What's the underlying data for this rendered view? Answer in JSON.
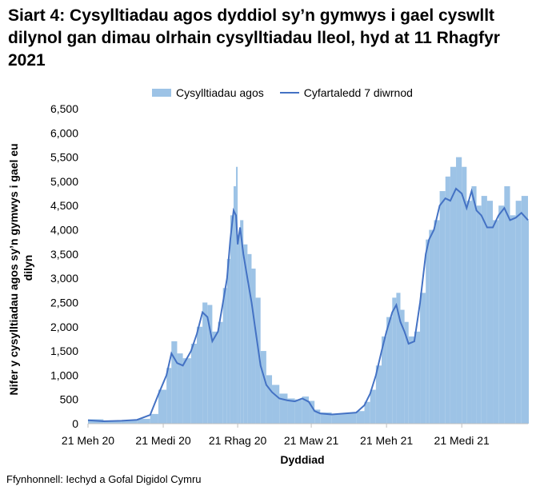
{
  "title": "Siart 4: Cysylltiadau agos dyddiol sy’n gymwys i gael cyswllt dilynol gan dimau olrhain cysylltiadau lleol, hyd at 11 Rhagfyr 2021",
  "source": "Ffynhonnell: Iechyd a Gofal Digidol Cymru",
  "chart_data": {
    "type": "bar",
    "title": "Siart 4: Cysylltiadau agos dyddiol sy’n gymwys i gael cyswllt dilynol gan dimau olrhain cysylltiadau lleol, hyd at 11 Rhagfyr 2021",
    "xlabel": "Dyddiad",
    "ylabel": "Nifer y cysylltiadau agos sy’n gymwys i gael eu dilyn",
    "ylim": [
      0,
      6500
    ],
    "yticks": [
      "0",
      "500",
      "1,000",
      "1,500",
      "2,000",
      "2,500",
      "3,000",
      "3,500",
      "4,000",
      "4,500",
      "5,000",
      "5,500",
      "6,000",
      "6,500"
    ],
    "x_tick_labels": [
      "21 Meh 20",
      "21 Medi 20",
      "21 Rhag 20",
      "21 Maw 21",
      "21 Meh 21",
      "21 Medi 21"
    ],
    "x_start": "2020-06-21",
    "x_end": "2021-12-11",
    "x_tick_dates": [
      "2020-06-21",
      "2020-09-21",
      "2020-12-21",
      "2021-03-21",
      "2021-06-21",
      "2021-09-21"
    ],
    "legend_position": "top",
    "series": [
      {
        "name": "Cysylltiadau agos",
        "kind": "bar",
        "color": "#9dc3e6",
        "dates": [
          "2020-06-21",
          "2020-07-10",
          "2020-08-01",
          "2020-08-20",
          "2020-09-05",
          "2020-09-15",
          "2020-09-25",
          "2020-10-01",
          "2020-10-08",
          "2020-10-15",
          "2020-10-25",
          "2020-11-01",
          "2020-11-08",
          "2020-11-14",
          "2020-11-20",
          "2020-11-27",
          "2020-12-03",
          "2020-12-08",
          "2020-12-12",
          "2020-12-16",
          "2020-12-19",
          "2020-12-21",
          "2020-12-24",
          "2020-12-28",
          "2021-01-02",
          "2021-01-07",
          "2021-01-12",
          "2021-01-18",
          "2021-01-25",
          "2021-02-01",
          "2021-02-10",
          "2021-02-20",
          "2021-03-01",
          "2021-03-10",
          "2021-03-18",
          "2021-03-25",
          "2021-04-01",
          "2021-04-15",
          "2021-05-01",
          "2021-05-15",
          "2021-05-25",
          "2021-06-01",
          "2021-06-08",
          "2021-06-15",
          "2021-06-21",
          "2021-06-28",
          "2021-07-03",
          "2021-07-08",
          "2021-07-13",
          "2021-07-18",
          "2021-07-25",
          "2021-08-01",
          "2021-08-08",
          "2021-08-12",
          "2021-08-18",
          "2021-08-25",
          "2021-09-01",
          "2021-09-07",
          "2021-09-14",
          "2021-09-21",
          "2021-09-27",
          "2021-10-03",
          "2021-10-09",
          "2021-10-15",
          "2021-10-22",
          "2021-10-29",
          "2021-11-05",
          "2021-11-12",
          "2021-11-19",
          "2021-11-26",
          "2021-12-03",
          "2021-12-11"
        ],
        "values": [
          90,
          60,
          70,
          100,
          200,
          700,
          1150,
          1700,
          1450,
          1350,
          1650,
          2000,
          2500,
          2450,
          1900,
          2100,
          2800,
          3400,
          4300,
          4900,
          5300,
          3900,
          4200,
          3700,
          3500,
          3200,
          2600,
          1500,
          1000,
          800,
          620,
          520,
          500,
          560,
          470,
          290,
          230,
          200,
          220,
          260,
          450,
          700,
          1200,
          1800,
          2200,
          2600,
          2700,
          2350,
          2100,
          1800,
          1900,
          2700,
          3800,
          4000,
          4200,
          4800,
          5100,
          5300,
          5500,
          5300,
          4600,
          4900,
          4500,
          4700,
          4600,
          4200,
          4500,
          4900,
          4300,
          4600,
          4700,
          4200
        ]
      },
      {
        "name": "Cyfartaledd 7 diwrnod",
        "kind": "line",
        "color": "#4472c4",
        "dates": [
          "2020-06-21",
          "2020-07-10",
          "2020-08-01",
          "2020-08-20",
          "2020-09-05",
          "2020-09-15",
          "2020-09-25",
          "2020-10-01",
          "2020-10-08",
          "2020-10-15",
          "2020-10-25",
          "2020-11-01",
          "2020-11-08",
          "2020-11-14",
          "2020-11-20",
          "2020-11-27",
          "2020-12-03",
          "2020-12-08",
          "2020-12-12",
          "2020-12-16",
          "2020-12-19",
          "2020-12-21",
          "2020-12-24",
          "2020-12-28",
          "2021-01-02",
          "2021-01-07",
          "2021-01-12",
          "2021-01-18",
          "2021-01-25",
          "2021-02-01",
          "2021-02-10",
          "2021-02-20",
          "2021-03-01",
          "2021-03-10",
          "2021-03-18",
          "2021-03-25",
          "2021-04-01",
          "2021-04-15",
          "2021-05-01",
          "2021-05-15",
          "2021-05-25",
          "2021-06-01",
          "2021-06-08",
          "2021-06-15",
          "2021-06-21",
          "2021-06-28",
          "2021-07-03",
          "2021-07-08",
          "2021-07-13",
          "2021-07-18",
          "2021-07-25",
          "2021-08-01",
          "2021-08-08",
          "2021-08-12",
          "2021-08-18",
          "2021-08-25",
          "2021-09-01",
          "2021-09-07",
          "2021-09-14",
          "2021-09-21",
          "2021-09-27",
          "2021-10-03",
          "2021-10-09",
          "2021-10-15",
          "2021-10-22",
          "2021-10-29",
          "2021-11-05",
          "2021-11-12",
          "2021-11-19",
          "2021-11-26",
          "2021-12-03",
          "2021-12-11"
        ],
        "values": [
          70,
          50,
          60,
          80,
          180,
          600,
          1000,
          1450,
          1250,
          1200,
          1500,
          1850,
          2300,
          2200,
          1700,
          1900,
          2500,
          3000,
          3800,
          4400,
          4300,
          3700,
          4050,
          3500,
          3000,
          2500,
          1900,
          1200,
          800,
          650,
          520,
          480,
          460,
          520,
          450,
          260,
          210,
          190,
          210,
          230,
          380,
          620,
          1000,
          1500,
          1900,
          2300,
          2450,
          2100,
          1900,
          1650,
          1700,
          2500,
          3500,
          3800,
          4000,
          4500,
          4650,
          4600,
          4850,
          4750,
          4450,
          4800,
          4400,
          4300,
          4050,
          4050,
          4300,
          4450,
          4200,
          4250,
          4350,
          4200
        ]
      }
    ]
  }
}
